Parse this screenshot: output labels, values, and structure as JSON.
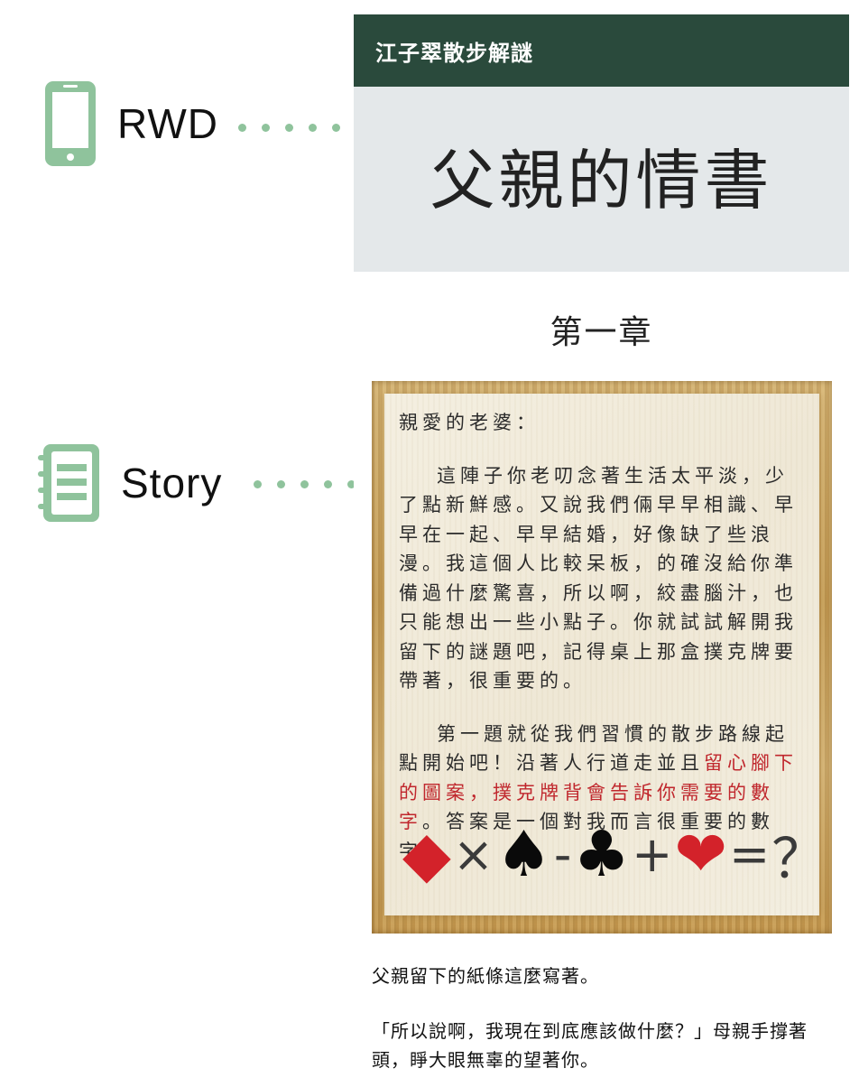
{
  "annotations": {
    "rwd": {
      "label": "RWD",
      "icon": "smartphone-icon",
      "color": "#8fc39c"
    },
    "story": {
      "label": "Story",
      "icon": "notebook-icon",
      "color": "#8fc39c"
    }
  },
  "app": {
    "header_title": "江子翠散步解謎",
    "hero_title": "父親的情書",
    "chapter": "第一章",
    "letter": {
      "greeting": "親愛的老婆：",
      "paragraph1": "這陣子你老叨念著生活太平淡，少了點新鮮感。又說我們倆早早相識、早早在一起、早早結婚，好像缺了些浪漫。我這個人比較呆板，的確沒給你準備過什麼驚喜，所以啊，絞盡腦汁，也只能想出一些小點子。你就試試解開我留下的謎題吧，記得桌上那盒撲克牌要帶著，很重要的。",
      "paragraph2_a": "第一題就從我們習慣的散步路線起點開始吧！沿著人行道走並且",
      "paragraph2_red": "留心腳下的圖案，撲克牌背會告訴你需要的數字",
      "paragraph2_b": "。答案是一個對我而言很重要的數字。"
    },
    "equation": {
      "diamond": "◆",
      "times": "×",
      "spade": "♠",
      "minus": "-",
      "club": "♣",
      "plus": "+",
      "heart": "❤",
      "equals": "=",
      "question": "？"
    },
    "body1": "父親留下的紙條這麼寫著。",
    "body2": "「所以說啊，我現在到底應該做什麼？」母親手撐著頭，睜大眼無辜的望著你。"
  },
  "colors": {
    "header_bg": "#2a4a3c",
    "hero_bg": "#e4e8ea",
    "accent_green": "#8fc39c",
    "highlight_red": "#c0272d"
  }
}
